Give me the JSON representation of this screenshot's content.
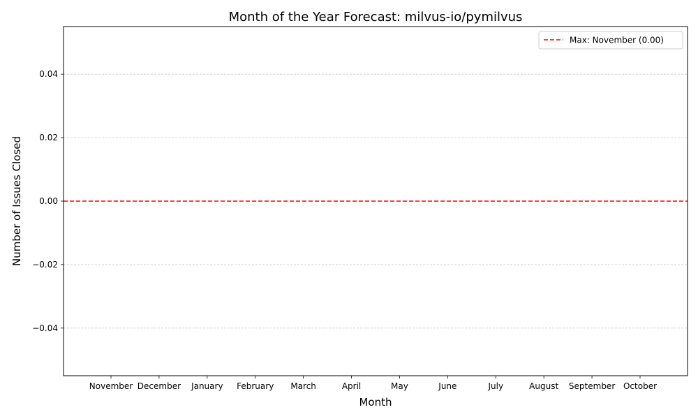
{
  "chart_data": {
    "type": "bar",
    "title": "Month of the Year Forecast: milvus-io/pymilvus",
    "xlabel": "Month",
    "ylabel": "Number of Issues Closed",
    "categories": [
      "November",
      "December",
      "January",
      "February",
      "March",
      "April",
      "May",
      "June",
      "July",
      "August",
      "September",
      "October"
    ],
    "values": [
      0,
      0,
      0,
      0,
      0,
      0,
      0,
      0,
      0,
      0,
      0,
      0
    ],
    "ylim": [
      -0.055,
      0.055
    ],
    "yticks": [
      -0.04,
      -0.02,
      0.0,
      0.02,
      0.04
    ],
    "ytick_labels": [
      "−0.04",
      "−0.02",
      "0.00",
      "0.02",
      "0.04"
    ],
    "grid": "y-dashed",
    "max_line": {
      "value": 0.0,
      "label": "Max: November (0.00)",
      "color": "#ff0000",
      "style": "dashed"
    },
    "legend_position": "top-right"
  }
}
